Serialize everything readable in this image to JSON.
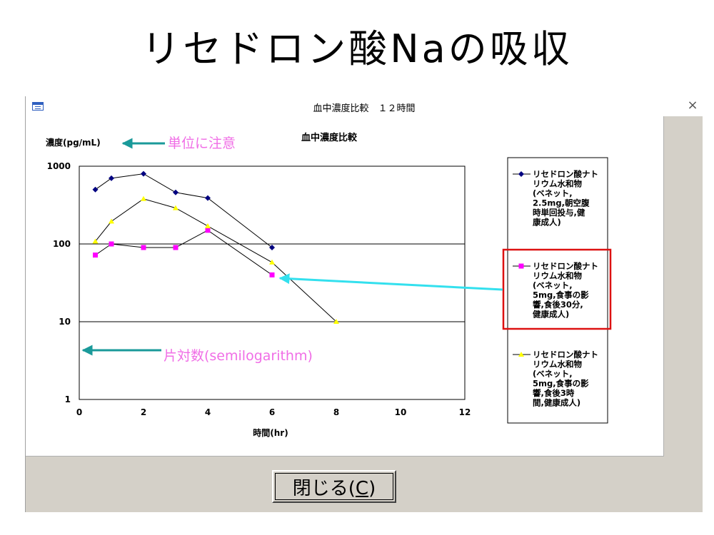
{
  "slide": {
    "title": "リセドロン酸Naの吸収"
  },
  "window": {
    "title": "血中濃度比較　１２時間",
    "close_glyph": "×",
    "close_button_label": "閉じる(C)",
    "close_button_hotkey": "C"
  },
  "annotations": {
    "unit_note": "単位に注意",
    "semilog_note": "片対数(semilogarithm)",
    "annotation_color": "#f06ee6",
    "arrow_color_teal": "#1a9a9a",
    "arrow_color_cyan": "#33e0ee",
    "highlight_color": "#dd1111"
  },
  "chart_data": {
    "type": "line",
    "title": "血中濃度比較",
    "ylabel": "濃度(pg/mL)",
    "xlabel": "時間(hr)",
    "xlim": [
      0,
      12
    ],
    "ylim": [
      1,
      1000
    ],
    "yscale": "log",
    "x_ticks": [
      "0",
      "2",
      "4",
      "6",
      "8",
      "10",
      "12"
    ],
    "y_ticks": [
      "1000",
      "100",
      "10",
      "1"
    ],
    "grid": true,
    "legend_position": "right",
    "series": [
      {
        "name": "リセドロン酸ナトリウム水和物(ベネット,2.5mg,朝空腹時単回投与,健康成人)",
        "legend_lines": [
          "リセドロン酸ナト",
          "リウム水和物",
          "(ベネット,",
          "2.5mg,朝空腹",
          "時単回投与,健",
          "康成人)"
        ],
        "color": "#000080",
        "marker": "diamond",
        "x": [
          0.5,
          1,
          2,
          3,
          4,
          6
        ],
        "y": [
          500,
          700,
          800,
          460,
          390,
          90
        ]
      },
      {
        "name": "リセドロン酸ナトリウム水和物(ベネット,5mg,食事の影響,食後30分,健康成人)",
        "legend_lines": [
          "リセドロン酸ナト",
          "リウム水和物",
          "(ベネット,",
          "5mg,食事の影",
          "響,食後30分,",
          "健康成人)"
        ],
        "color": "#ff00ff",
        "marker": "square",
        "x": [
          0.5,
          1,
          2,
          3,
          4,
          6
        ],
        "y": [
          72,
          100,
          90,
          90,
          150,
          40
        ]
      },
      {
        "name": "リセドロン酸ナトリウム水和物(ベネット,5mg,食事の影響,食後3時間,健康成人)",
        "legend_lines": [
          "リセドロン酸ナト",
          "リウム水和物",
          "(ベネット,",
          "5mg,食事の影",
          "響,食後3時",
          "間,健康成人)"
        ],
        "color": "#ffff00",
        "marker": "triangle",
        "x": [
          0.5,
          1,
          2,
          3,
          4,
          6,
          8
        ],
        "y": [
          108,
          195,
          380,
          290,
          170,
          58,
          10
        ]
      }
    ]
  }
}
